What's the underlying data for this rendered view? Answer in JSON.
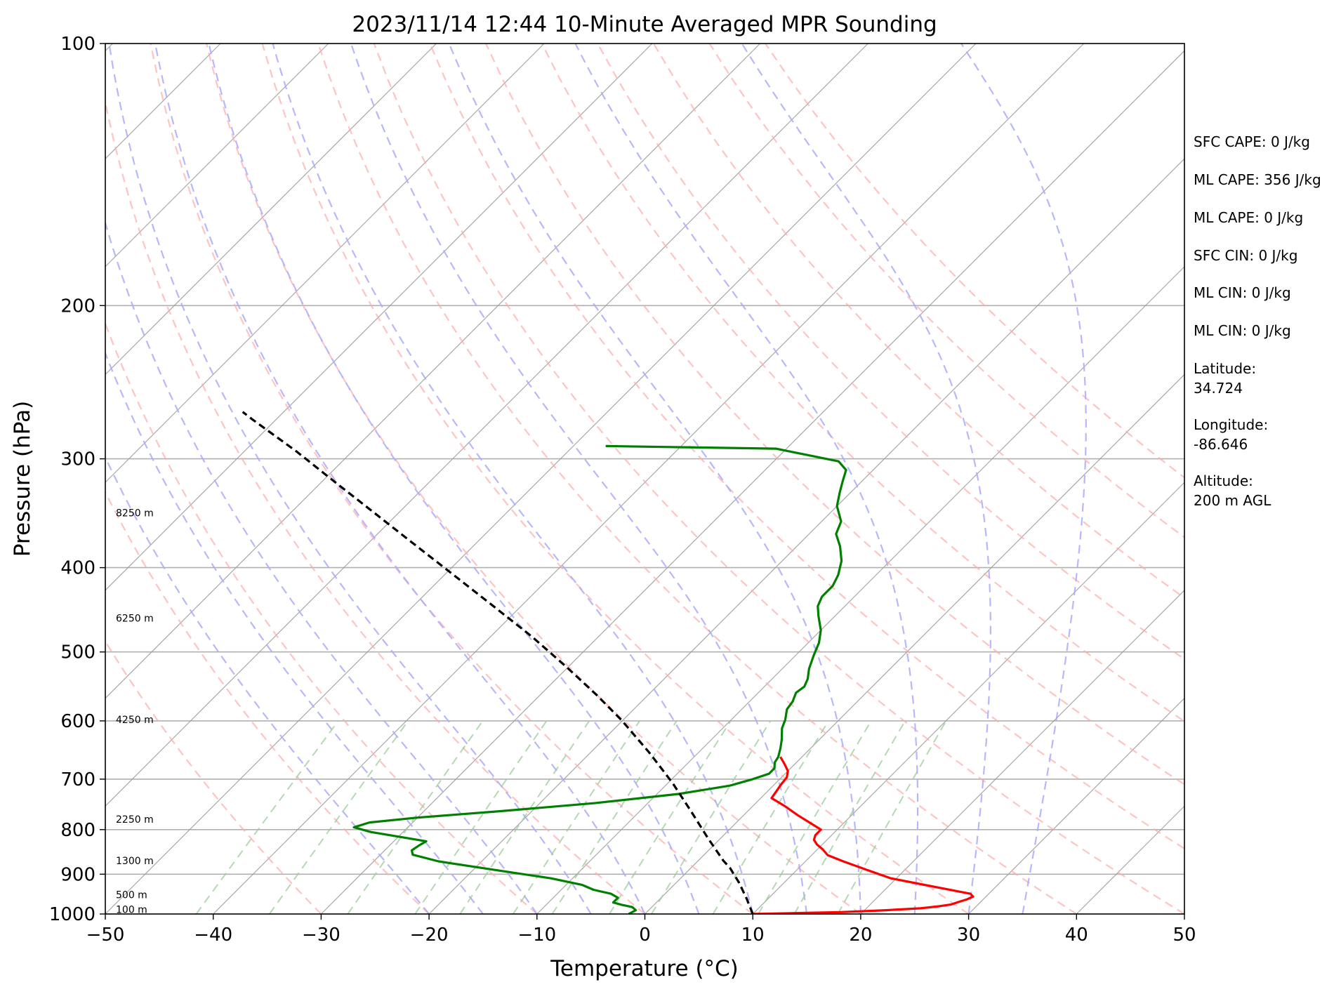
{
  "chart_data": {
    "type": "line",
    "chart_kind": "skew-T log-P sounding",
    "title": "2023/11/14 12:44 10-Minute Averaged MPR Sounding",
    "xlabel": "Temperature (°C)",
    "ylabel": "Pressure (hPa)",
    "xlim": [
      -50,
      50
    ],
    "ylim": [
      1000,
      100
    ],
    "y_scale": "log",
    "grid": true,
    "x_ticks": [
      "−50",
      "−40",
      "−30",
      "−20",
      "−10",
      "0",
      "10",
      "20",
      "30",
      "40",
      "50"
    ],
    "x_tick_values": [
      -50,
      -40,
      -30,
      -20,
      -10,
      0,
      10,
      20,
      30,
      40,
      50
    ],
    "y_ticks": [
      "100",
      "200",
      "300",
      "400",
      "500",
      "600",
      "700",
      "800",
      "900",
      "1000"
    ],
    "y_tick_values": [
      100,
      200,
      300,
      400,
      500,
      600,
      700,
      800,
      900,
      1000
    ],
    "colors": {
      "temperature": "#ff0000",
      "dewpoint": "#008000",
      "parcel": "#000000",
      "isotherms": "#999999",
      "dry_adiabats": "#ffaaaa",
      "moist_adiabats": "#aaaaff",
      "mixing_ratio": "#99cc99"
    },
    "series": [
      {
        "key": "temperature",
        "points": [
          [
            10.0,
            1000
          ],
          [
            18.0,
            995
          ],
          [
            22.0,
            990
          ],
          [
            25.0,
            985
          ],
          [
            26.5,
            980
          ],
          [
            27.5,
            975
          ],
          [
            28.0,
            968
          ],
          [
            28.5,
            962
          ],
          [
            28.8,
            955
          ],
          [
            28.3,
            948
          ],
          [
            26.5,
            940
          ],
          [
            23.0,
            925
          ],
          [
            19.5,
            910
          ],
          [
            16.5,
            890
          ],
          [
            13.5,
            870
          ],
          [
            11.5,
            856
          ],
          [
            10.5,
            843
          ],
          [
            9.5,
            832
          ],
          [
            8.8,
            822
          ],
          [
            8.5,
            812
          ],
          [
            8.5,
            800
          ],
          [
            7.0,
            787
          ],
          [
            5.0,
            770
          ],
          [
            3.0,
            752
          ],
          [
            1.0,
            736
          ],
          [
            0.8,
            722
          ],
          [
            0.6,
            709
          ],
          [
            0.5,
            697
          ],
          [
            0.0,
            685
          ],
          [
            -1.0,
            672
          ],
          [
            -2.0,
            660
          ]
        ]
      },
      {
        "key": "dewpoint",
        "points": [
          [
            -1.5,
            1000
          ],
          [
            -1.2,
            990
          ],
          [
            -1.8,
            982
          ],
          [
            -3.0,
            976
          ],
          [
            -4.0,
            970
          ],
          [
            -4.0,
            958
          ],
          [
            -5.0,
            948
          ],
          [
            -7.0,
            938
          ],
          [
            -8.5,
            926
          ],
          [
            -12.0,
            910
          ],
          [
            -18.0,
            890
          ],
          [
            -24.0,
            870
          ],
          [
            -27.0,
            855
          ],
          [
            -27.5,
            845
          ],
          [
            -27.3,
            835
          ],
          [
            -27.0,
            825
          ],
          [
            -30.0,
            815
          ],
          [
            -33.0,
            805
          ],
          [
            -35.0,
            795
          ],
          [
            -34.0,
            785
          ],
          [
            -30.0,
            775
          ],
          [
            -23.0,
            762
          ],
          [
            -15.0,
            746
          ],
          [
            -8.0,
            728
          ],
          [
            -4.0,
            712
          ],
          [
            -2.5,
            700
          ],
          [
            -1.5,
            690
          ],
          [
            -1.5,
            680
          ],
          [
            -2.0,
            670
          ],
          [
            -2.2,
            660
          ],
          [
            -2.8,
            645
          ],
          [
            -3.5,
            630
          ],
          [
            -4.5,
            612
          ],
          [
            -5.0,
            598
          ],
          [
            -5.8,
            582
          ],
          [
            -6.0,
            570
          ],
          [
            -6.5,
            557
          ],
          [
            -6.3,
            548
          ],
          [
            -6.7,
            537
          ],
          [
            -7.5,
            523
          ],
          [
            -8.3,
            505
          ],
          [
            -9.0,
            488
          ],
          [
            -10.0,
            472
          ],
          [
            -11.5,
            455
          ],
          [
            -12.5,
            443
          ],
          [
            -13.0,
            432
          ],
          [
            -13.0,
            420
          ],
          [
            -13.5,
            408
          ],
          [
            -14.5,
            393
          ],
          [
            -16.0,
            378
          ],
          [
            -17.5,
            366
          ],
          [
            -18.2,
            354
          ],
          [
            -20.0,
            340
          ],
          [
            -21.0,
            328
          ],
          [
            -21.8,
            318
          ],
          [
            -22.5,
            309
          ],
          [
            -24.0,
            302
          ],
          [
            -31.0,
            292
          ],
          [
            -47.0,
            290
          ]
        ]
      },
      {
        "key": "parcel",
        "points": [
          [
            10.0,
            1000
          ],
          [
            8.0,
            960
          ],
          [
            5.8,
            920
          ],
          [
            3.6,
            885
          ],
          [
            2.3,
            868
          ],
          [
            -1.2,
            818
          ],
          [
            -5.1,
            764
          ],
          [
            -9.5,
            708
          ],
          [
            -14.5,
            653
          ],
          [
            -20.0,
            600
          ],
          [
            -24.8,
            560
          ],
          [
            -30.2,
            520
          ],
          [
            -36.2,
            480
          ],
          [
            -43.1,
            440
          ],
          [
            -50.7,
            400
          ],
          [
            -56.5,
            372
          ],
          [
            -62.5,
            345
          ],
          [
            -69.0,
            318
          ],
          [
            -75.2,
            294
          ],
          [
            -82.3,
            270
          ],
          [
            -83.8,
            265
          ]
        ]
      }
    ],
    "isotherms_c": [
      -130,
      -120,
      -110,
      -100,
      -90,
      -80,
      -70,
      -60,
      -50,
      -40,
      -30,
      -20,
      -10,
      0,
      10,
      20,
      30,
      40,
      50
    ],
    "dry_adiabats_c": [
      -30,
      -20,
      -10,
      0,
      10,
      20,
      30,
      40,
      50,
      60,
      70,
      80,
      90,
      100,
      110,
      120
    ],
    "moist_adiabats_c": [
      -20,
      -15,
      -10,
      -5,
      0,
      5,
      10,
      15,
      20,
      25,
      30,
      35
    ],
    "mixing_ratio_gkg": [
      0.1,
      0.2,
      0.4,
      0.7,
      1,
      1.5,
      2,
      3,
      4,
      6,
      8,
      10,
      13
    ],
    "height_labels": [
      {
        "text": "100 m",
        "p": 988
      },
      {
        "text": "500 m",
        "p": 950
      },
      {
        "text": "1300 m",
        "p": 868
      },
      {
        "text": "2250 m",
        "p": 778
      },
      {
        "text": "4250 m",
        "p": 598
      },
      {
        "text": "6250 m",
        "p": 457
      },
      {
        "text": "8250 m",
        "p": 346
      }
    ]
  },
  "info_panel": {
    "sfc_cape": "SFC CAPE: 0 J/kg",
    "ml_cape": "ML CAPE: 356 J/kg",
    "ml_cape_2": "ML CAPE: 0 J/kg",
    "sfc_cin": "SFC CIN: 0 J/kg",
    "ml_cin": "ML CIN: 0 J/kg",
    "ml_cin_2": "ML CIN: 0 J/kg",
    "latitude_label": "Latitude:",
    "latitude_value": "34.724",
    "longitude_label": "Longitude:",
    "longitude_value": "-86.646",
    "altitude_label": "Altitude:",
    "altitude_value": "200 m AGL"
  }
}
